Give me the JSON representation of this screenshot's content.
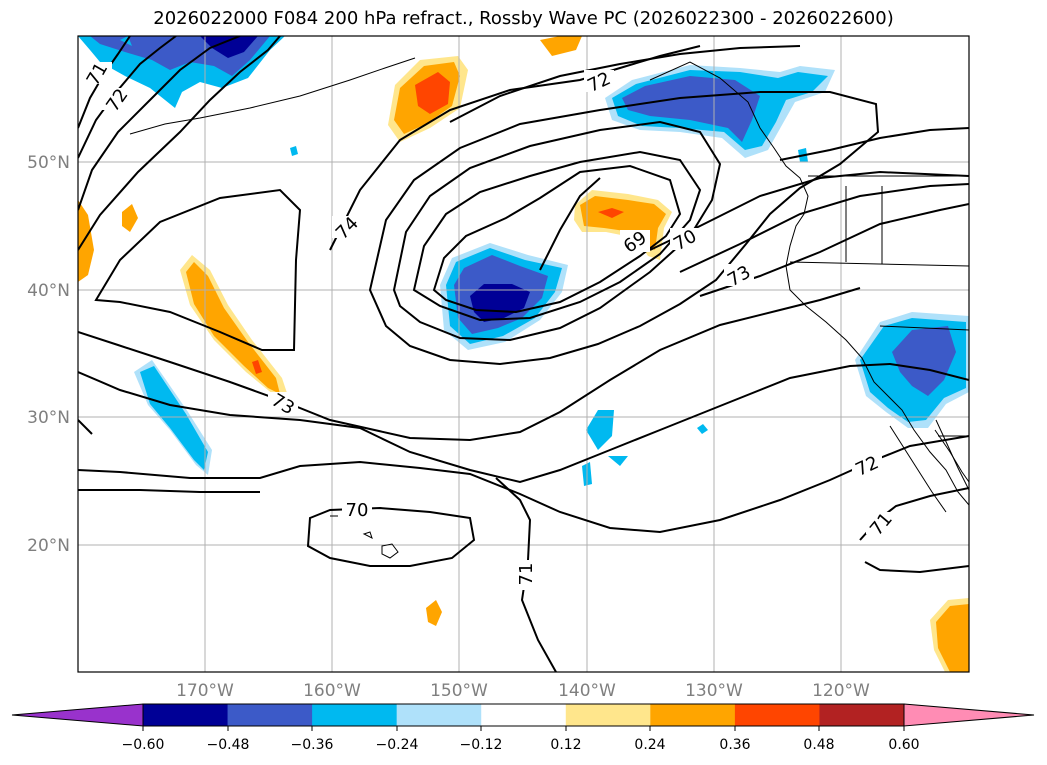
{
  "title": "2026022000 F084 200 hPa refract., Rossby Wave PC (2026022300 - 2026022600)",
  "map": {
    "lat_labels": [
      "50°N",
      "40°N",
      "30°N",
      "20°N"
    ],
    "lon_labels": [
      "170°W",
      "160°W",
      "150°W",
      "140°W",
      "130°W",
      "120°W"
    ],
    "contour_labels": [
      "71",
      "72",
      "74",
      "72",
      "69",
      "70",
      "73",
      "73",
      "70",
      "71",
      "72",
      "71"
    ]
  },
  "colorbar": {
    "colors": [
      "#9932cc",
      "#000096",
      "#3c5ac8",
      "#00b9f0",
      "#afe1fa",
      "#ffffff",
      "#ffe68c",
      "#ffa500",
      "#ff4500",
      "#b22222",
      "#ff8cb4"
    ],
    "tick_labels": [
      "−0.60",
      "−0.48",
      "−0.36",
      "−0.24",
      "−0.12",
      "0.12",
      "0.24",
      "0.36",
      "0.48",
      "0.60"
    ]
  }
}
